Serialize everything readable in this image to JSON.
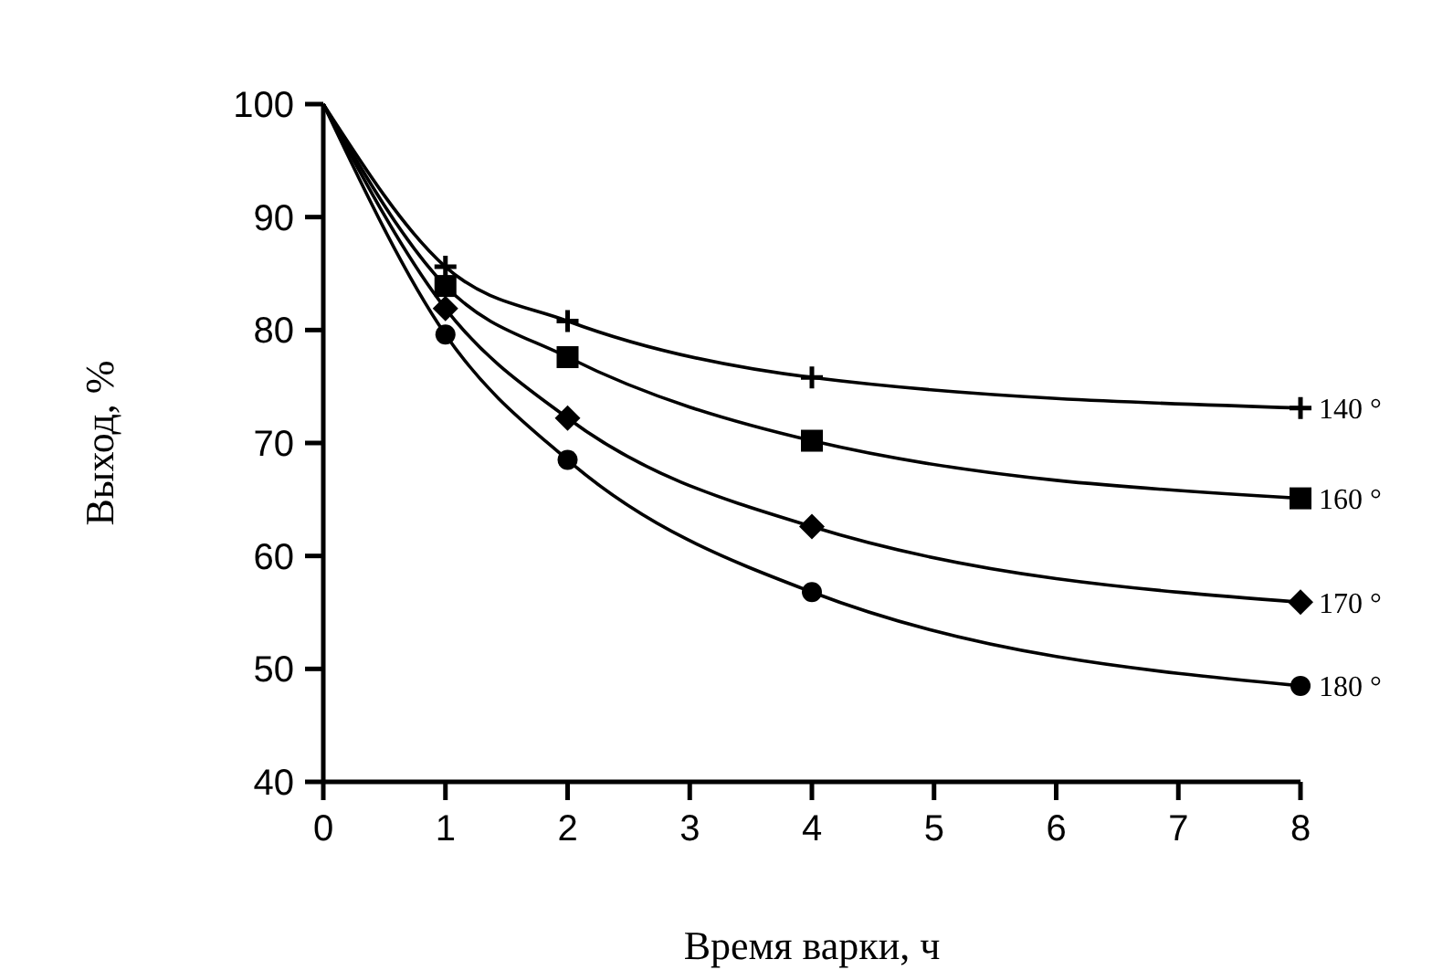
{
  "chart_data": {
    "type": "line",
    "xlabel": "Время варки, ч",
    "ylabel": "Выход, %",
    "x": [
      0,
      1,
      2,
      4,
      8
    ],
    "xlim": [
      0,
      8
    ],
    "xticks": [
      0,
      1,
      2,
      3,
      4,
      5,
      6,
      7,
      8
    ],
    "ylim": [
      40,
      100
    ],
    "yticks": [
      40,
      50,
      60,
      70,
      80,
      90,
      100
    ],
    "grid": false,
    "line_style": "solid",
    "series": [
      {
        "name": "140 °",
        "color": "#000000",
        "marker": "cross",
        "values": [
          100,
          85.6,
          80.8,
          75.8,
          73.1
        ]
      },
      {
        "name": "160 °",
        "color": "#000000",
        "marker": "square",
        "values": [
          100,
          83.9,
          77.6,
          70.2,
          65.1
        ]
      },
      {
        "name": "170 °",
        "color": "#000000",
        "marker": "diamond",
        "values": [
          100,
          81.9,
          72.2,
          62.6,
          55.9
        ]
      },
      {
        "name": "180 °",
        "color": "#000000",
        "marker": "circle",
        "values": [
          100,
          79.6,
          68.5,
          56.8,
          48.5
        ]
      }
    ]
  }
}
